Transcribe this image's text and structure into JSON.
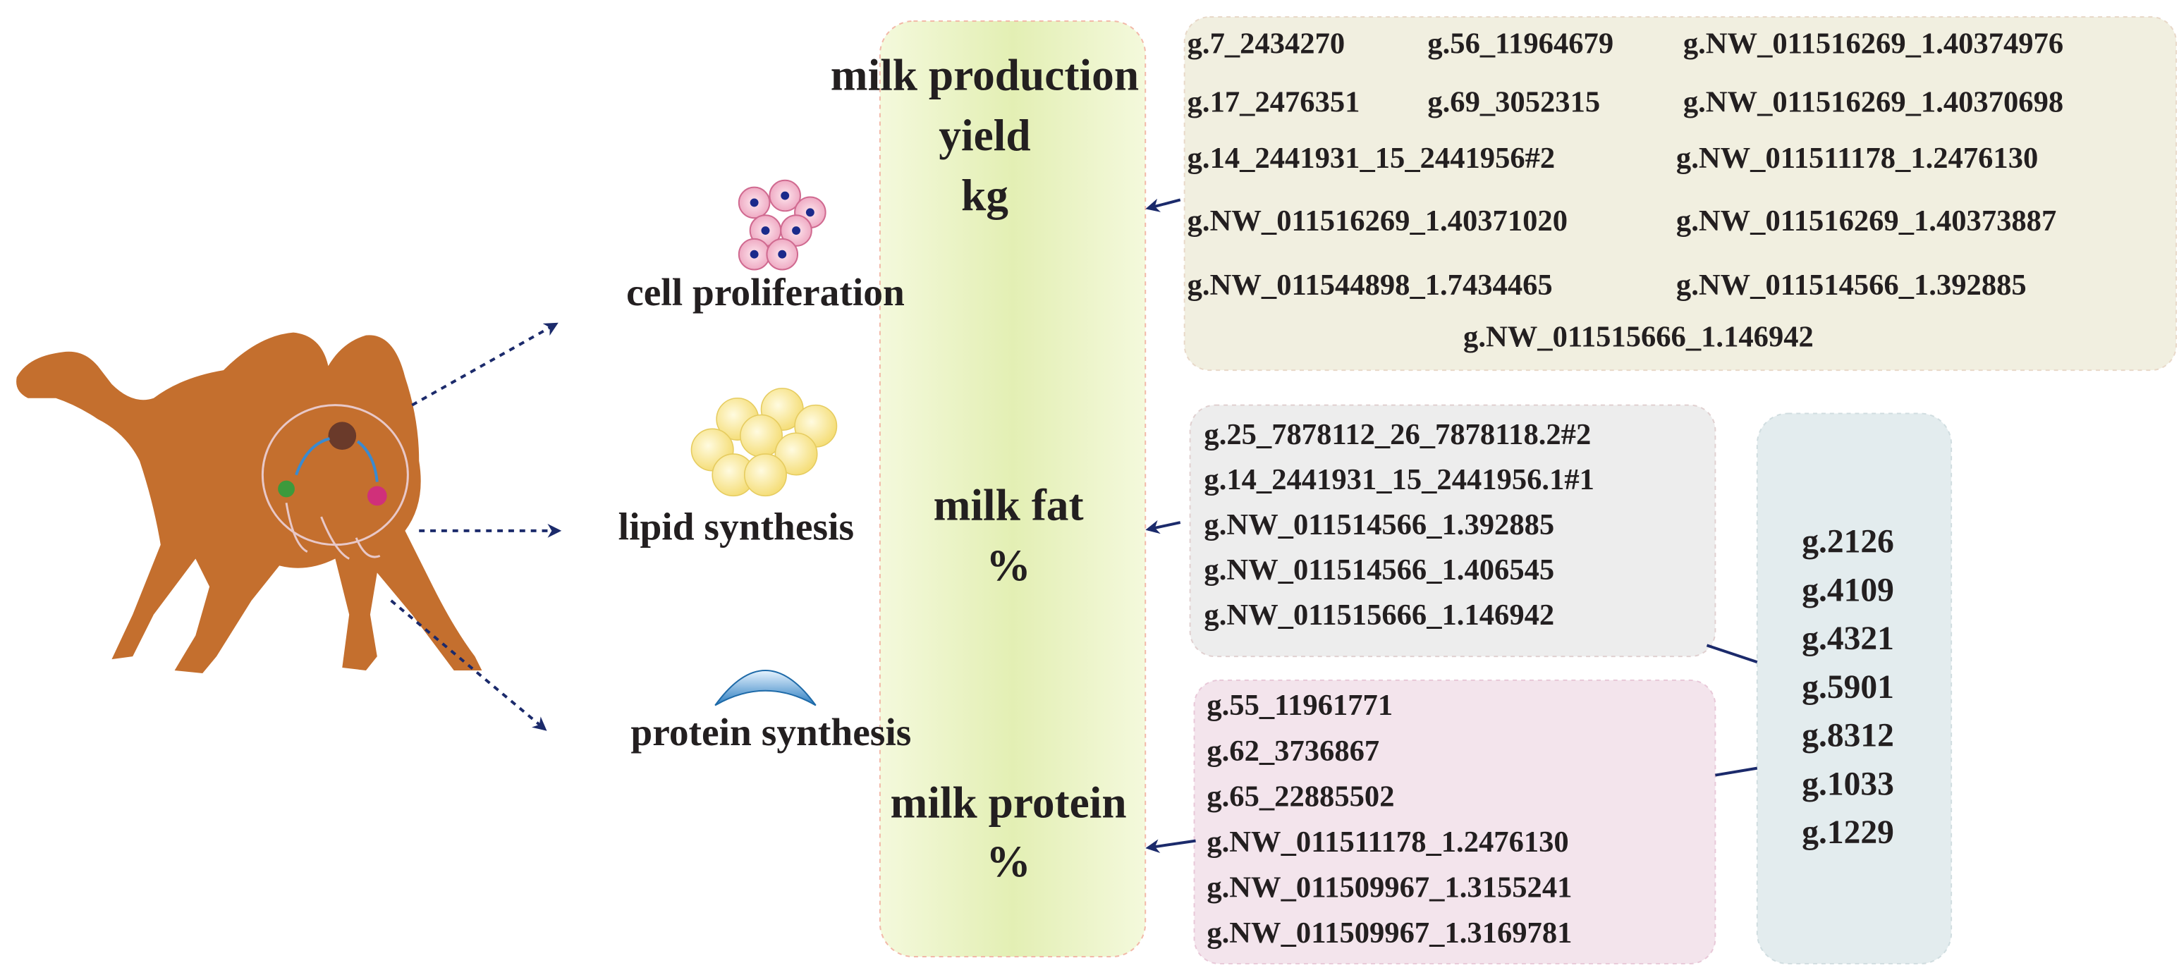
{
  "processes": [
    "cell proliferation",
    "lipid synthesis",
    "protein synthesis"
  ],
  "traits": [
    {
      "lines": [
        "milk production",
        "yield",
        "kg"
      ]
    },
    {
      "lines": [
        "milk fat",
        "%"
      ]
    },
    {
      "lines": [
        "milk protein",
        "%"
      ]
    }
  ],
  "production_snps": [
    [
      "g.7_2434270",
      "g.56_11964679",
      "g.NW_011516269_1.40374976"
    ],
    [
      "g.17_2476351",
      "g.69_3052315",
      "g.NW_011516269_1.40370698"
    ],
    [
      "g.14_2441931_15_2441956#2",
      "g.NW_011511178_1.2476130"
    ],
    [
      "g.NW_011516269_1.40371020",
      "g.NW_011516269_1.40373887"
    ],
    [
      "g.NW_011544898_1.7434465",
      "g.NW_011514566_1.392885"
    ],
    [
      "g.NW_011515666_1.146942"
    ]
  ],
  "fat_snps": [
    "g.25_7878112_26_7878118.2#2",
    "g.14_2441931_15_2441956.1#1",
    "g.NW_011514566_1.392885",
    "g.NW_011514566_1.406545",
    "g.NW_011515666_1.146942"
  ],
  "protein_snps": [
    "g.55_11961771",
    "g.62_3736867",
    "g.65_22885502",
    "g.NW_011511178_1.2476130",
    "g.NW_011509967_1.3155241",
    "g.NW_011509967_1.3169781"
  ],
  "genes": [
    "g.2126",
    "g.4109",
    "g.4321",
    "g.5901",
    "g.8312",
    "g.1033",
    "g.1229"
  ]
}
